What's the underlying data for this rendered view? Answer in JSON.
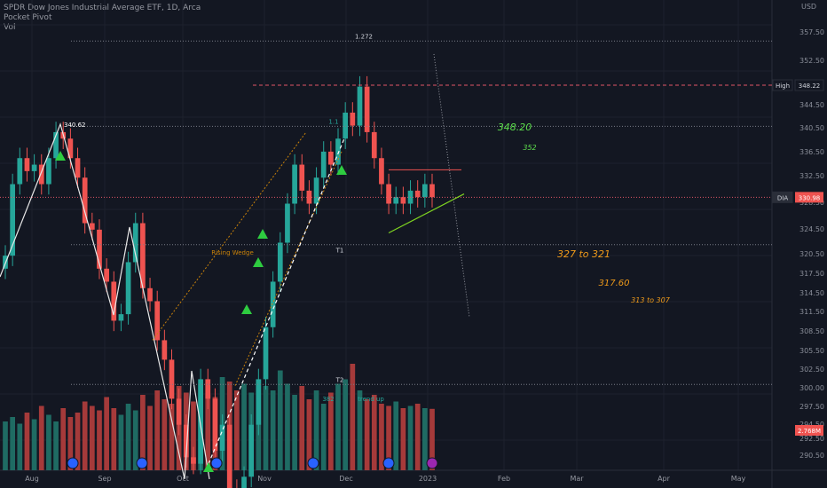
{
  "legend": {
    "title": "SPDR Dow Jones Industrial Average ETF, 1D, Arca",
    "indicator": "Pocket Pivot",
    "volume": "Vol"
  },
  "colors": {
    "bg": "#131722",
    "grid": "#1e222d",
    "up": "#26a69a",
    "down": "#ef5350",
    "vol_up": "#1f6b63",
    "vol_down": "#a53a3a",
    "wedge": "#c9820a",
    "green_label": "#5ee04d",
    "orange_label": "#ef9a1a",
    "triangle": "#2ecc40",
    "high_line": "#e05567",
    "axis_text": "#8a8e99"
  },
  "chart_data": {
    "type": "candlestick",
    "symbol": "DIA",
    "currency_label": "USD",
    "ylim": [
      289.0,
      360.5
    ],
    "y_ticks": [
      "357.50",
      "352.50",
      "348.50",
      "344.50",
      "340.50",
      "336.50",
      "332.50",
      "328.50",
      "324.50",
      "320.50",
      "317.50",
      "314.50",
      "311.50",
      "308.50",
      "305.50",
      "302.50",
      "300.00",
      "297.50",
      "294.50",
      "292.50",
      "290.50"
    ],
    "x_labels": [
      "Aug",
      "Sep",
      "Oct",
      "Nov",
      "Dec",
      "2023",
      "Feb",
      "Mar",
      "Apr",
      "May"
    ],
    "price_badges": [
      {
        "tag": "High",
        "value": "348.22"
      },
      {
        "tag": "DIA",
        "value": "330.98"
      },
      {
        "tag": "",
        "value": "2.768M"
      }
    ],
    "fib_levels": [
      {
        "label": "1.272",
        "price": 355.0
      },
      {
        "label": "1.1",
        "price": 341.9
      },
      {
        "label": "T1",
        "price": 323.7
      },
      {
        "label": "T2",
        "price": 302.2
      }
    ],
    "annotations": [
      "340.62",
      "Rising Wedge",
      "382",
      "trend up"
    ],
    "targets": [
      "348.20",
      "352",
      "327 to 321",
      "317.60",
      "313 to 307"
    ],
    "swing_closes": [
      322,
      333,
      337,
      335,
      336,
      333,
      337,
      341,
      340,
      337,
      334,
      327,
      326,
      320,
      318,
      312,
      313,
      321,
      327,
      317,
      315,
      309,
      306,
      300,
      296,
      291,
      290,
      303,
      300,
      292,
      296,
      286,
      284,
      288,
      296,
      303,
      311,
      318,
      324,
      330,
      336,
      332,
      330,
      334,
      338,
      336,
      340,
      344,
      342,
      348,
      341,
      337,
      333,
      330,
      331,
      330,
      332,
      331,
      333,
      331
    ],
    "volume_millions": [
      2.2,
      2.4,
      2.1,
      2.6,
      2.3,
      2.9,
      2.5,
      2.2,
      2.8,
      2.4,
      2.6,
      3.1,
      2.9,
      2.7,
      3.3,
      2.8,
      2.5,
      3.0,
      2.7,
      3.4,
      2.9,
      3.6,
      3.2,
      3.0,
      3.8,
      3.5,
      3.1,
      3.9,
      3.4,
      3.3,
      4.2,
      4.0,
      3.6,
      3.9,
      3.5,
      4.1,
      3.8,
      3.6,
      4.5,
      3.9,
      3.4,
      3.8,
      3.2,
      3.6,
      3.0,
      3.5,
      3.9,
      4.1,
      4.8,
      3.6,
      3.2,
      3.4,
      3.0,
      2.9,
      3.1,
      2.8,
      2.9,
      3.0,
      2.8,
      2.768
    ]
  }
}
